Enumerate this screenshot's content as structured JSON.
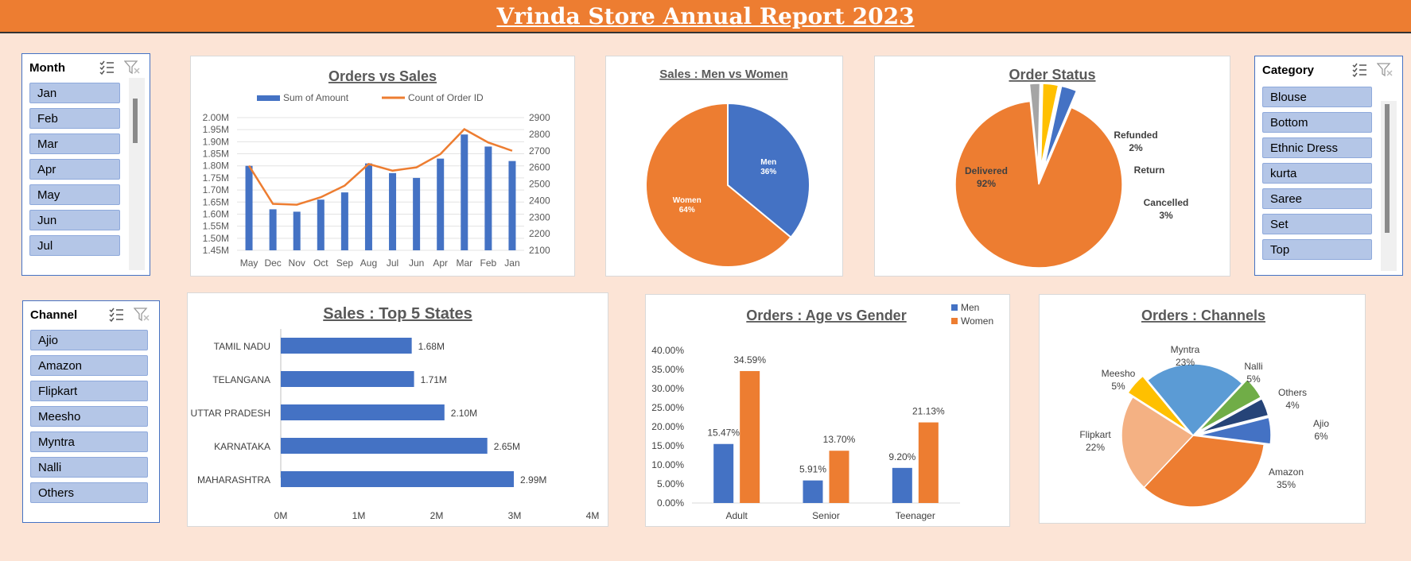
{
  "header": {
    "title": "Vrinda Store Annual Report 2023"
  },
  "slicers": {
    "month": {
      "title": "Month",
      "items": [
        "Jan",
        "Feb",
        "Mar",
        "Apr",
        "May",
        "Jun",
        "Jul"
      ]
    },
    "category": {
      "title": "Category",
      "items": [
        "Blouse",
        "Bottom",
        "Ethnic Dress",
        "kurta",
        "Saree",
        "Set",
        "Top"
      ]
    },
    "channel": {
      "title": "Channel",
      "items": [
        "Ajio",
        "Amazon",
        "Flipkart",
        "Meesho",
        "Myntra",
        "Nalli",
        "Others"
      ]
    }
  },
  "colors": {
    "blue": "#4472c4",
    "orange": "#ed7d31",
    "grey": "#a5a5a5",
    "yellow": "#ffc000",
    "lightblue": "#5b9bd5",
    "green": "#70ad47",
    "navy": "#264478",
    "peach": "#f4b183"
  },
  "chart_data": [
    {
      "id": "orders_vs_sales",
      "type": "bar+line",
      "title": "Orders vs Sales",
      "categories": [
        "May",
        "Dec",
        "Nov",
        "Oct",
        "Sep",
        "Aug",
        "Jul",
        "Jun",
        "Apr",
        "Mar",
        "Feb",
        "Jan"
      ],
      "series": [
        {
          "name": "Sum of Amount",
          "type": "bar",
          "axis": "left",
          "values": [
            1.8,
            1.62,
            1.61,
            1.66,
            1.69,
            1.81,
            1.77,
            1.75,
            1.83,
            1.93,
            1.88,
            1.82
          ]
        },
        {
          "name": "Count of Order ID",
          "type": "line",
          "axis": "right",
          "values": [
            2610,
            2380,
            2375,
            2420,
            2490,
            2620,
            2580,
            2600,
            2680,
            2830,
            2750,
            2700
          ]
        }
      ],
      "left_ticks": [
        "2.00M",
        "1.95M",
        "1.90M",
        "1.85M",
        "1.80M",
        "1.75M",
        "1.70M",
        "1.65M",
        "1.60M",
        "1.55M",
        "1.50M",
        "1.45M"
      ],
      "right_ticks": [
        "2900",
        "2800",
        "2700",
        "2600",
        "2500",
        "2400",
        "2300",
        "2200",
        "2100"
      ],
      "ylim_left": [
        1.45,
        2.0
      ],
      "ylim_right": [
        2100,
        2900
      ],
      "legend": "top",
      "grid": true
    },
    {
      "id": "men_women",
      "type": "pie",
      "title": "Sales : Men vs Women",
      "slices": [
        {
          "label": "Men",
          "value": 36,
          "pct": "36%"
        },
        {
          "label": "Women",
          "value": 64,
          "pct": "64%"
        }
      ]
    },
    {
      "id": "order_status",
      "type": "pie",
      "title": "Order Status",
      "slices": [
        {
          "label": "Delivered",
          "value": 92,
          "pct": "92%"
        },
        {
          "label": "Refunded",
          "value": 2,
          "pct": "2%"
        },
        {
          "label": "Return",
          "value": 3,
          "pct": ""
        },
        {
          "label": "Cancelled",
          "value": 3,
          "pct": "3%"
        }
      ]
    },
    {
      "id": "top_states",
      "type": "bar",
      "title": "Sales : Top 5 States",
      "categories": [
        "TAMIL NADU",
        "TELANGANA",
        "UTTAR PRADESH",
        "KARNATAKA",
        "MAHARASHTRA"
      ],
      "values": [
        1.68,
        1.71,
        2.1,
        2.65,
        2.99
      ],
      "value_labels": [
        "1.68M",
        "1.71M",
        "2.10M",
        "2.65M",
        "2.99M"
      ],
      "x_ticks": [
        "0M",
        "1M",
        "2M",
        "3M",
        "4M"
      ],
      "xlim": [
        0,
        4
      ]
    },
    {
      "id": "age_gender",
      "type": "bar",
      "title": "Orders : Age vs Gender",
      "categories": [
        "Adult",
        "Senior",
        "Teenager"
      ],
      "series": [
        {
          "name": "Men",
          "values": [
            15.47,
            5.91,
            9.2
          ],
          "labels": [
            "15.47%",
            "5.91%",
            "9.20%"
          ]
        },
        {
          "name": "Women",
          "values": [
            34.59,
            13.7,
            21.13
          ],
          "labels": [
            "34.59%",
            "13.70%",
            "21.13%"
          ]
        }
      ],
      "y_ticks": [
        "40.00%",
        "35.00%",
        "30.00%",
        "25.00%",
        "20.00%",
        "15.00%",
        "10.00%",
        "5.00%",
        "0.00%"
      ],
      "ylim": [
        0,
        40
      ],
      "legend": "top-right"
    },
    {
      "id": "channels",
      "type": "pie",
      "title": "Orders : Channels",
      "slices": [
        {
          "label": "Ajio",
          "value": 6,
          "pct": "6%"
        },
        {
          "label": "Amazon",
          "value": 35,
          "pct": "35%"
        },
        {
          "label": "Flipkart",
          "value": 22,
          "pct": "22%"
        },
        {
          "label": "Meesho",
          "value": 5,
          "pct": "5%"
        },
        {
          "label": "Myntra",
          "value": 23,
          "pct": "23%"
        },
        {
          "label": "Nalli",
          "value": 5,
          "pct": "5%"
        },
        {
          "label": "Others",
          "value": 4,
          "pct": "4%"
        }
      ]
    }
  ]
}
